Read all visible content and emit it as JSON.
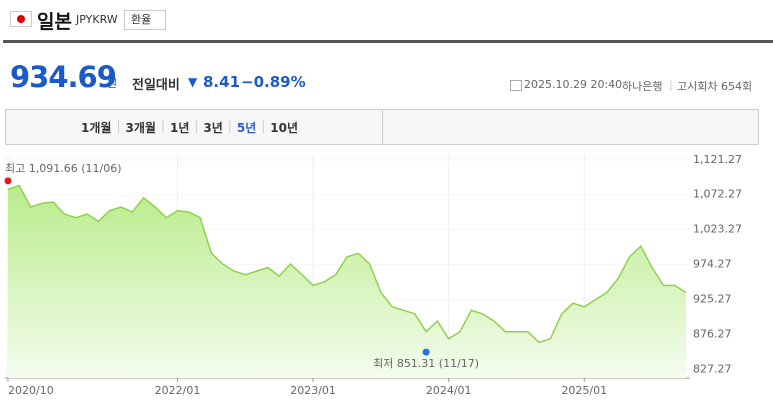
{
  "header": {
    "title": "일본",
    "code": "JPYKRW",
    "button": "환율"
  },
  "quote": {
    "price": "934.69",
    "unit": "원",
    "change_label": "전일대비",
    "change": "8.41",
    "change_percent": "−0.89%",
    "datetime": "2025.10.29 20:40",
    "bank": "하나은행",
    "round": "고시회차 654회"
  },
  "tabs": {
    "items": [
      "1개월",
      "3개월",
      "1년",
      "3년",
      "5년",
      "10년"
    ],
    "active": 4
  },
  "chart_data": {
    "type": "area",
    "color": "#8fd14f",
    "grid": true,
    "x": [
      "2020/10",
      "2020/11",
      "2020/12",
      "2021/01",
      "2021/02",
      "2021/03",
      "2021/04",
      "2021/05",
      "2021/06",
      "2021/07",
      "2021/08",
      "2021/09",
      "2021/10",
      "2021/11",
      "2021/12",
      "2022/01",
      "2022/02",
      "2022/03",
      "2022/04",
      "2022/05",
      "2022/06",
      "2022/07",
      "2022/08",
      "2022/09",
      "2022/10",
      "2022/11",
      "2022/12",
      "2023/01",
      "2023/02",
      "2023/03",
      "2023/04",
      "2023/05",
      "2023/06",
      "2023/07",
      "2023/08",
      "2023/09",
      "2023/10",
      "2023/11",
      "2023/12",
      "2024/01",
      "2024/02",
      "2024/03",
      "2024/04",
      "2024/05",
      "2024/06",
      "2024/07",
      "2024/08",
      "2024/09",
      "2024/10",
      "2024/11",
      "2024/12",
      "2025/01",
      "2025/02",
      "2025/03",
      "2025/04",
      "2025/05",
      "2025/06",
      "2025/07",
      "2025/08",
      "2025/09",
      "2025/10"
    ],
    "values": [
      1080,
      1085,
      1055,
      1060,
      1062,
      1045,
      1040,
      1045,
      1035,
      1050,
      1055,
      1048,
      1068,
      1055,
      1040,
      1050,
      1048,
      1040,
      990,
      975,
      965,
      960,
      965,
      970,
      958,
      975,
      960,
      945,
      950,
      960,
      985,
      990,
      975,
      935,
      915,
      910,
      905,
      880,
      895,
      870,
      880,
      910,
      905,
      895,
      880,
      880,
      880,
      865,
      870,
      905,
      920,
      915,
      925,
      935,
      955,
      985,
      1000,
      970,
      945,
      945,
      935
    ],
    "ylim": [
      815,
      1128
    ],
    "yticks": [
      {
        "value": 1121.27,
        "label": "1,121.27"
      },
      {
        "value": 1072.27,
        "label": "1,072.27"
      },
      {
        "value": 1023.27,
        "label": "1,023.27"
      },
      974.27,
      925.27,
      876.27,
      827.27
    ],
    "xticks": [
      "2020/10",
      "2022/01",
      "2023/01",
      "2024/01",
      "2025/01"
    ],
    "annotations": [
      {
        "text": "최고 1,091.66 (11/06)",
        "value": 1091.66,
        "x": "2020/10",
        "color": "#e8141e"
      },
      {
        "text": "최저 851.31 (11/17)",
        "value": 851.31,
        "x": "2023/11",
        "color": "#2d6fd8"
      }
    ]
  }
}
